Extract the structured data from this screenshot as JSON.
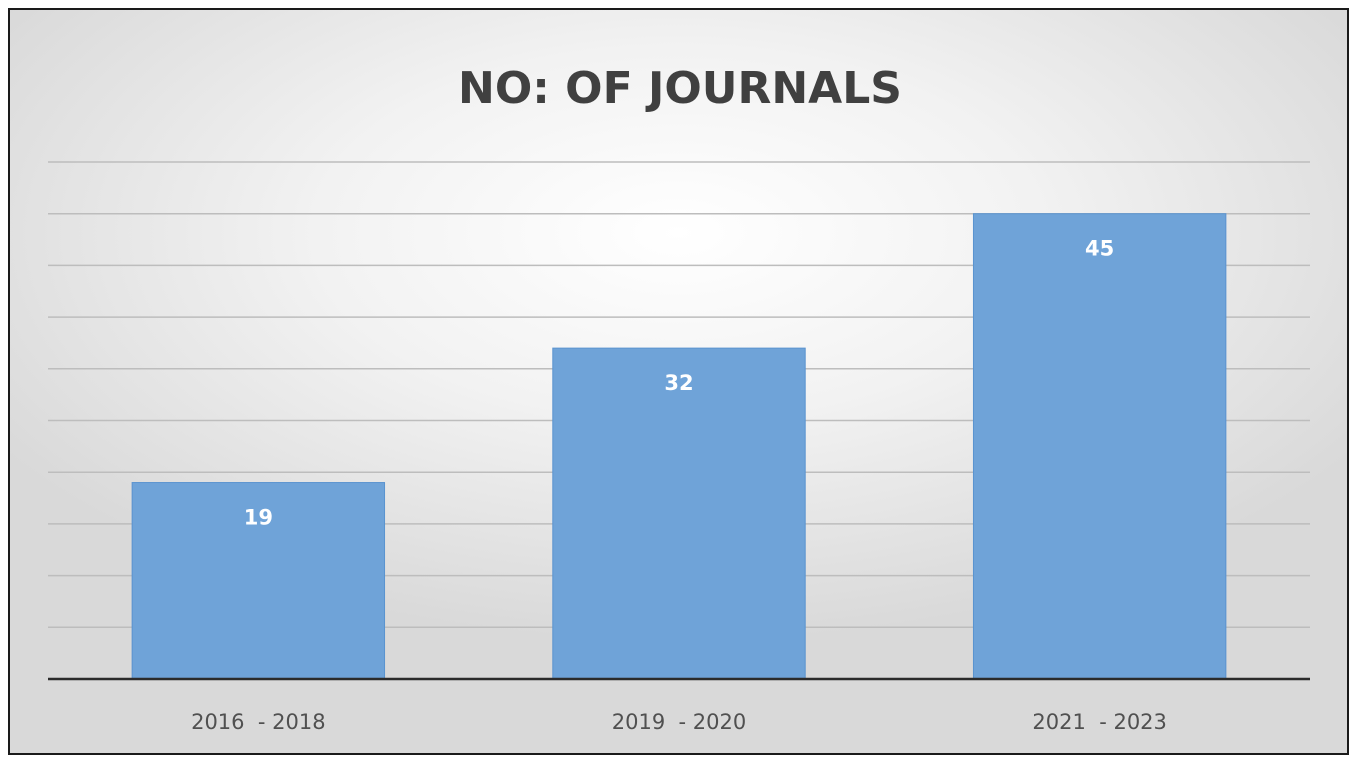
{
  "chart_data": {
    "type": "bar",
    "title": "NO: OF JOURNALS",
    "categories": [
      "2016  - 2018",
      "2019  - 2020",
      "2021  - 2023"
    ],
    "values": [
      19,
      32,
      45
    ],
    "ylim": [
      0,
      50
    ],
    "grid": true,
    "colors": {
      "bar": "#6fa3d8",
      "data_label": "#ffffff",
      "title": "#404040"
    }
  }
}
